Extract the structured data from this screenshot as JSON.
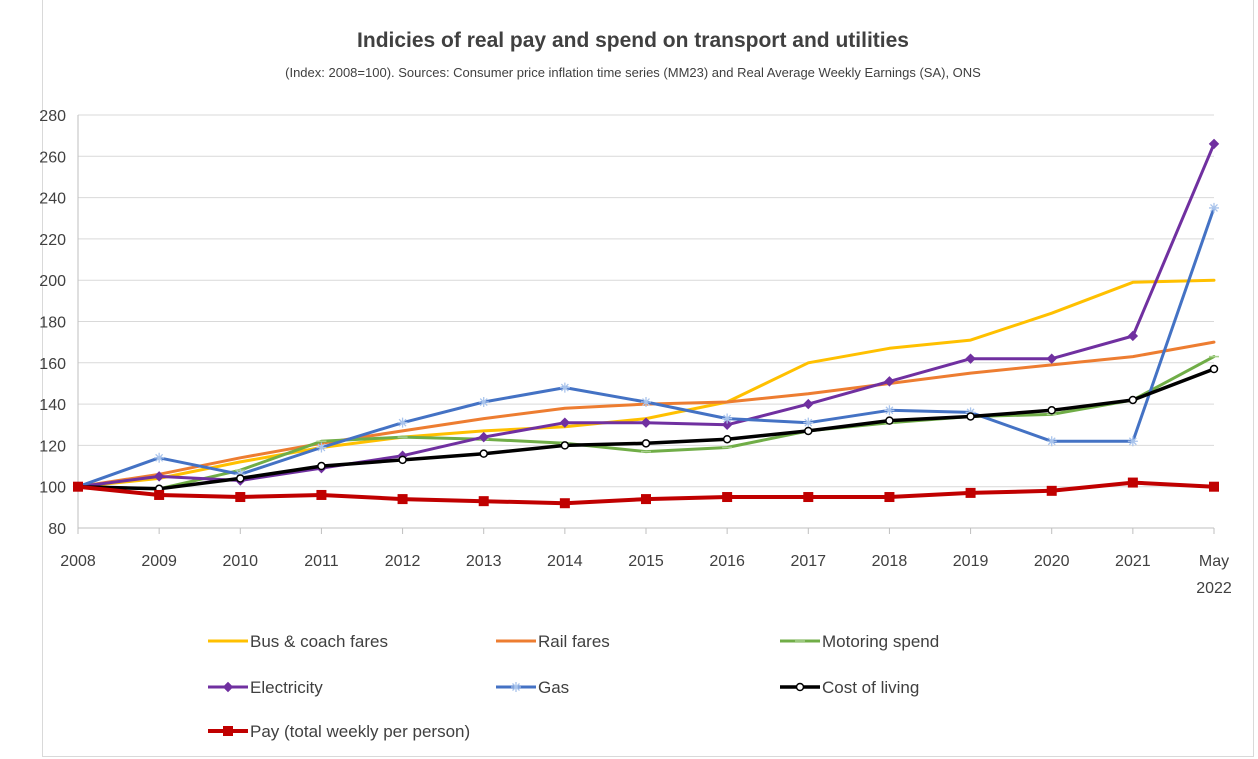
{
  "chart_data": {
    "type": "line",
    "title": "Indicies of real pay and spend on transport and utilities",
    "subtitle": "(Index: 2008=100). Sources: Consumer price inflation time series (MM23) and Real Average Weekly Earnings (SA), ONS",
    "xlabel": "",
    "ylabel": "",
    "ylim": [
      80,
      280
    ],
    "yticks": [
      80,
      100,
      120,
      140,
      160,
      180,
      200,
      220,
      240,
      260,
      280
    ],
    "categories": [
      "2008",
      "2009",
      "2010",
      "2011",
      "2012",
      "2013",
      "2014",
      "2015",
      "2016",
      "2017",
      "2018",
      "2019",
      "2020",
      "2021",
      "May 2022"
    ],
    "category_label_lines": [
      [
        "2008"
      ],
      [
        "2009"
      ],
      [
        "2010"
      ],
      [
        "2011"
      ],
      [
        "2012"
      ],
      [
        "2013"
      ],
      [
        "2014"
      ],
      [
        "2015"
      ],
      [
        "2016"
      ],
      [
        "2017"
      ],
      [
        "2018"
      ],
      [
        "2019"
      ],
      [
        "2020"
      ],
      [
        "2021"
      ],
      [
        "May",
        "2022"
      ]
    ],
    "grid": "horizontal",
    "legend_position": "bottom",
    "series": [
      {
        "name": "Bus & coach fares",
        "color": "#ffc000",
        "marker": "none",
        "width": 3,
        "values": [
          100,
          104,
          112,
          119,
          124,
          127,
          129,
          133,
          141,
          160,
          167,
          171,
          184,
          199,
          200
        ]
      },
      {
        "name": "Rail fares",
        "color": "#ed7d31",
        "marker": "none",
        "width": 3,
        "values": [
          100,
          106,
          114,
          121,
          127,
          133,
          138,
          140,
          141,
          145,
          150,
          155,
          159,
          163,
          170
        ]
      },
      {
        "name": "Motoring spend",
        "color": "#70ad47",
        "marker": "line",
        "width": 3,
        "values": [
          100,
          99,
          108,
          122,
          124,
          123,
          121,
          117,
          119,
          127,
          131,
          134,
          135,
          142,
          163
        ]
      },
      {
        "name": "Electricity",
        "color": "#7030a0",
        "marker": "diamond",
        "width": 3,
        "values": [
          100,
          105,
          103,
          109,
          115,
          124,
          131,
          131,
          130,
          140,
          151,
          162,
          162,
          173,
          266
        ]
      },
      {
        "name": "Gas",
        "color": "#4472c4",
        "marker": "star",
        "width": 3,
        "values": [
          100,
          114,
          106,
          119,
          131,
          141,
          148,
          141,
          133,
          131,
          137,
          136,
          122,
          122,
          235
        ]
      },
      {
        "name": "Cost of living",
        "color": "#000000",
        "marker": "circle",
        "width": 3.5,
        "values": [
          100,
          99,
          104,
          110,
          113,
          116,
          120,
          121,
          123,
          127,
          132,
          134,
          137,
          142,
          157
        ]
      },
      {
        "name": "Pay (total weekly per person)",
        "color": "#c00000",
        "marker": "square",
        "width": 4,
        "values": [
          100,
          96,
          95,
          96,
          94,
          93,
          92,
          94,
          95,
          95,
          95,
          97,
          98,
          102,
          100
        ]
      }
    ]
  }
}
